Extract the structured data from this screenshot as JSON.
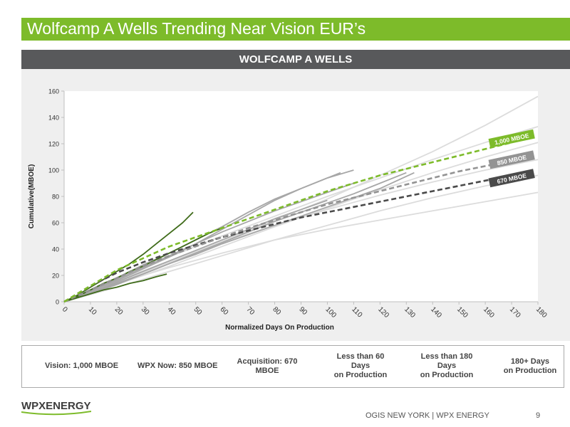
{
  "header": {
    "title": "Wolfcamp A Wells Trending Near Vision EUR’s"
  },
  "section": {
    "title": "WOLFCAMP A WELLS"
  },
  "chart_data": {
    "type": "line",
    "title": "",
    "xlabel": "Normalized Days On Production",
    "ylabel": "Cumulative(MBOE)",
    "xlim": [
      0,
      180
    ],
    "ylim": [
      0,
      160
    ],
    "xticks": [
      0,
      10,
      20,
      30,
      40,
      50,
      60,
      70,
      80,
      90,
      100,
      110,
      120,
      130,
      140,
      150,
      160,
      170,
      180
    ],
    "yticks": [
      0,
      20,
      40,
      60,
      80,
      100,
      120,
      140,
      160
    ],
    "grid": false,
    "curve_labels": [
      {
        "text": "1,000 MBOE",
        "color": "#7dbb2a",
        "at": [
          178,
          127
        ]
      },
      {
        "text": "850 MBOE",
        "color": "#939393",
        "at": [
          178,
          111
        ]
      },
      {
        "text": "670 MBOE",
        "color": "#4a4a4a",
        "at": [
          178,
          97
        ]
      }
    ],
    "series": [
      {
        "name": "Vision: 1,000 MBOE",
        "group": "vision",
        "color": "#7dbb2a",
        "dash": true,
        "x": [
          0,
          10,
          20,
          30,
          40,
          50,
          60,
          70,
          80,
          90,
          100,
          110,
          120,
          130,
          140,
          150,
          160,
          170
        ],
        "y": [
          0,
          12,
          24,
          33,
          42,
          49,
          56,
          63,
          70,
          77,
          84,
          90,
          96,
          101,
          106,
          111,
          116,
          121
        ]
      },
      {
        "name": "WPX Now: 850 MBOE",
        "group": "wpx_now",
        "color": "#939393",
        "dash": true,
        "x": [
          0,
          10,
          20,
          30,
          40,
          50,
          60,
          70,
          80,
          90,
          100,
          110,
          120,
          130,
          140,
          150,
          160,
          170
        ],
        "y": [
          0,
          9,
          18,
          27,
          35,
          42,
          49,
          56,
          62,
          68,
          74,
          79,
          84,
          89,
          94,
          99,
          103,
          107
        ]
      },
      {
        "name": "Acquisition: 670 MBOE",
        "group": "acquisition",
        "color": "#4a4a4a",
        "dash": true,
        "x": [
          0,
          10,
          20,
          30,
          40,
          50,
          60,
          70,
          80,
          90,
          100,
          110,
          120,
          130,
          140,
          150,
          160,
          170
        ],
        "y": [
          0,
          12,
          22,
          30,
          37,
          43,
          49,
          54,
          59,
          64,
          68,
          72,
          76,
          80,
          84,
          88,
          92,
          96
        ]
      },
      {
        "group": "lt60",
        "color": "#3f6b1a",
        "dash": false,
        "x": [
          0,
          5,
          10,
          15,
          20,
          25,
          30,
          35,
          40,
          45,
          49
        ],
        "y": [
          0,
          5,
          11,
          17,
          23,
          29,
          36,
          44,
          52,
          60,
          68
        ]
      },
      {
        "group": "lt60",
        "color": "#3f6b1a",
        "dash": false,
        "x": [
          0,
          5,
          10,
          15,
          20,
          25,
          30,
          35,
          39
        ],
        "y": [
          0,
          3,
          6,
          9,
          11,
          14,
          16,
          19,
          21
        ]
      },
      {
        "group": "lt60",
        "color": "#3f6b1a",
        "dash": false,
        "x": [
          0,
          5,
          10,
          15,
          20,
          25,
          30,
          35,
          40,
          45,
          50,
          55,
          60
        ],
        "y": [
          0,
          4,
          9,
          14,
          18,
          23,
          27,
          32,
          37,
          42,
          47,
          52,
          56
        ]
      },
      {
        "group": "lt180",
        "color": "#a7a7a7",
        "dash": false,
        "x": [
          0,
          10,
          20,
          30,
          40,
          50,
          60,
          70,
          80,
          90,
          100,
          110
        ],
        "y": [
          0,
          9,
          18,
          28,
          37,
          47,
          57,
          68,
          78,
          86,
          94,
          100
        ]
      },
      {
        "group": "lt180",
        "color": "#a7a7a7",
        "dash": false,
        "x": [
          0,
          10,
          20,
          30,
          40,
          50,
          60,
          70,
          80,
          90,
          100,
          105
        ],
        "y": [
          0,
          8,
          16,
          25,
          34,
          44,
          55,
          66,
          77,
          86,
          94,
          98
        ]
      },
      {
        "group": "lt180",
        "color": "#a7a7a7",
        "dash": false,
        "x": [
          0,
          10,
          20,
          30,
          40,
          50,
          60,
          70,
          80,
          90,
          100,
          110,
          120,
          130
        ],
        "y": [
          0,
          6,
          13,
          21,
          29,
          37,
          45,
          53,
          61,
          68,
          75,
          82,
          90,
          98
        ]
      },
      {
        "group": "lt180",
        "color": "#a7a7a7",
        "dash": false,
        "x": [
          0,
          10,
          20,
          30,
          40,
          50,
          60,
          70,
          80,
          90,
          100,
          110,
          120,
          133
        ],
        "y": [
          0,
          7,
          14,
          21,
          29,
          36,
          44,
          51,
          58,
          65,
          72,
          79,
          86,
          98
        ]
      },
      {
        "group": "lt180",
        "color": "#a7a7a7",
        "dash": false,
        "x": [
          0,
          10,
          20,
          30,
          40,
          50,
          60,
          70,
          80,
          90,
          100,
          110
        ],
        "y": [
          0,
          8,
          17,
          26,
          35,
          44,
          53,
          61,
          69,
          76,
          83,
          90
        ]
      },
      {
        "group": "lt180",
        "color": "#a7a7a7",
        "dash": false,
        "x": [
          0,
          10,
          20,
          30,
          40,
          50,
          60,
          70,
          80,
          90,
          100
        ],
        "y": [
          0,
          7,
          15,
          23,
          31,
          39,
          47,
          55,
          63,
          70,
          77
        ]
      },
      {
        "group": "gt180",
        "color": "#dcdcdc",
        "dash": false,
        "x": [
          0,
          20,
          40,
          60,
          80,
          100,
          120,
          140,
          160,
          180
        ],
        "y": [
          0,
          14,
          30,
          46,
          62,
          78,
          96,
          114,
          134,
          156
        ]
      },
      {
        "group": "gt180",
        "color": "#dcdcdc",
        "dash": false,
        "x": [
          0,
          20,
          40,
          60,
          80,
          100,
          120,
          140,
          160,
          180
        ],
        "y": [
          0,
          18,
          34,
          50,
          65,
          80,
          94,
          108,
          121,
          133
        ]
      },
      {
        "group": "gt180",
        "color": "#dcdcdc",
        "dash": false,
        "x": [
          0,
          20,
          40,
          60,
          80,
          100,
          120,
          140,
          160,
          180
        ],
        "y": [
          0,
          13,
          27,
          42,
          57,
          71,
          85,
          98,
          110,
          121
        ]
      },
      {
        "group": "gt180",
        "color": "#dcdcdc",
        "dash": false,
        "x": [
          0,
          20,
          40,
          60,
          80,
          100,
          120,
          140,
          160,
          180
        ],
        "y": [
          0,
          16,
          31,
          45,
          58,
          70,
          81,
          91,
          100,
          108
        ]
      },
      {
        "group": "gt180",
        "color": "#dcdcdc",
        "dash": false,
        "x": [
          0,
          20,
          40,
          60,
          80,
          100,
          120,
          140,
          160,
          180
        ],
        "y": [
          0,
          11,
          23,
          35,
          47,
          58,
          69,
          79,
          88,
          96
        ]
      },
      {
        "group": "gt180",
        "color": "#dcdcdc",
        "dash": false,
        "x": [
          0,
          20,
          40,
          60,
          80,
          100,
          120,
          140,
          160,
          180
        ],
        "y": [
          0,
          14,
          26,
          37,
          47,
          55,
          62,
          69,
          76,
          83
        ]
      }
    ]
  },
  "legend": {
    "items": [
      {
        "label": "Vision:  1,000 MBOE",
        "color": "#7dbb2a",
        "dash": true
      },
      {
        "label": "WPX Now:  850 MBOE",
        "color": "#939393",
        "dash": true
      },
      {
        "label": "Acquisition:  670\nMBOE",
        "color": "#4a4a4a",
        "dash": true
      },
      {
        "label": "Less than 60\nDays\non Production",
        "color": "#3f6b1a",
        "dash": false
      },
      {
        "label": "Less than 180\nDays\non Production",
        "color": "#a7a7a7",
        "dash": false
      },
      {
        "label": "180+ Days\non Production",
        "color": "#dcdcdc",
        "dash": false
      }
    ]
  },
  "footer": {
    "logo": "WPXENERGY",
    "text": "OGIS NEW YORK  |  WPX ENERGY",
    "page": "9"
  }
}
